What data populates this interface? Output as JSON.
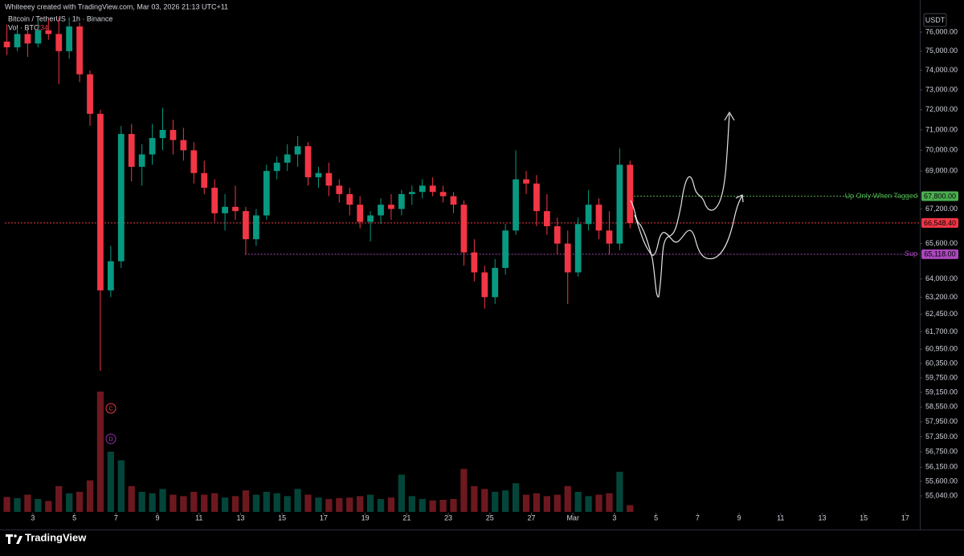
{
  "header": {
    "credit": "Whiteeey created with TradingView.com, Mar 03, 2026 21:13 UTC+11"
  },
  "footer": {
    "logo": "TradingView"
  },
  "chart_data": {
    "type": "candlestick",
    "title": "Bitcoin / TetherUS · 1h · Binance",
    "currency": "USDT",
    "log_scale": true,
    "up_color": "#089981",
    "down_color": "#f23645",
    "x": [
      1.75,
      2.25,
      2.75,
      3.25,
      3.75,
      4.25,
      4.75,
      5.25,
      5.75,
      6.25,
      6.75,
      7.25,
      7.75,
      8.25,
      8.75,
      9.25,
      9.75,
      10.25,
      10.75,
      11.25,
      11.75,
      12.25,
      12.75,
      13.25,
      13.75,
      14.25,
      14.75,
      15.25,
      15.75,
      16.25,
      16.75,
      17.25,
      17.75,
      18.25,
      18.75,
      19.25,
      19.75,
      20.25,
      20.75,
      21.25,
      21.75,
      22.25,
      22.75,
      23.25,
      23.75,
      24.25,
      24.75,
      25.25,
      25.75,
      26.25,
      26.75,
      27.25,
      27.75,
      28.25,
      28.75,
      29.25,
      29.75,
      30.25,
      30.75,
      31.25,
      31.75
    ],
    "open": [
      75500,
      75200,
      75900,
      75400,
      76100,
      75900,
      75000,
      76300,
      73800,
      71800,
      63500,
      64800,
      70800,
      69200,
      69800,
      70600,
      71000,
      70500,
      70000,
      68900,
      68200,
      67000,
      67300,
      67100,
      65800,
      66900,
      69000,
      69400,
      69800,
      70200,
      68700,
      68900,
      68300,
      67900,
      67400,
      66600,
      66900,
      67400,
      67200,
      67900,
      68000,
      68300,
      68000,
      67800,
      67400,
      65200,
      64300,
      63200,
      64500,
      66200,
      68600,
      68400,
      67100,
      66400,
      65600,
      64300,
      66500,
      67400,
      66200,
      65600,
      69300
    ],
    "high": [
      76400,
      76200,
      76300,
      76600,
      76700,
      76800,
      76800,
      76500,
      74000,
      72000,
      65500,
      71200,
      71300,
      70300,
      71300,
      72100,
      71500,
      71100,
      70400,
      69500,
      68600,
      67900,
      68300,
      67300,
      67200,
      69300,
      69700,
      70300,
      70700,
      70400,
      69200,
      69400,
      68600,
      68200,
      67800,
      67100,
      67700,
      67900,
      68100,
      68300,
      68600,
      68700,
      68300,
      68000,
      67600,
      65800,
      64600,
      64900,
      66500,
      70000,
      69000,
      68800,
      67900,
      66800,
      66200,
      66800,
      68100,
      67700,
      67100,
      70100,
      69500
    ],
    "low": [
      74800,
      75000,
      74700,
      75200,
      75600,
      73300,
      74600,
      73400,
      71200,
      60040,
      63200,
      64500,
      68500,
      68300,
      69300,
      70000,
      69800,
      69500,
      68400,
      67900,
      66600,
      66200,
      66700,
      65100,
      65500,
      66700,
      68600,
      69000,
      69200,
      68300,
      68200,
      67800,
      67500,
      66900,
      66300,
      65700,
      66500,
      66700,
      66900,
      67400,
      67700,
      67800,
      67500,
      67000,
      64600,
      63900,
      62700,
      62900,
      64200,
      66000,
      67900,
      66400,
      66000,
      65100,
      62900,
      64100,
      66200,
      65800,
      65100,
      65300,
      66300
    ],
    "close": [
      75200,
      75900,
      75400,
      76100,
      75900,
      75000,
      76300,
      73800,
      71800,
      63500,
      64800,
      70800,
      69200,
      69800,
      70600,
      71000,
      70500,
      70000,
      68900,
      68200,
      67000,
      67300,
      67100,
      65800,
      66900,
      69000,
      69400,
      69800,
      70200,
      68700,
      68900,
      68300,
      67900,
      67400,
      66600,
      66900,
      67400,
      67200,
      67900,
      68000,
      68300,
      68000,
      67800,
      67400,
      65200,
      64300,
      63200,
      64500,
      66200,
      68600,
      68400,
      67100,
      66400,
      65600,
      64300,
      66500,
      67400,
      66200,
      65600,
      69300,
      66548.4
    ],
    "volume_label": "Vol · BTC",
    "volume": [
      520,
      480,
      600,
      450,
      380,
      900,
      650,
      700,
      1100,
      4200,
      2100,
      1800,
      900,
      700,
      650,
      800,
      600,
      550,
      700,
      600,
      650,
      500,
      550,
      750,
      600,
      700,
      650,
      550,
      800,
      600,
      500,
      450,
      480,
      500,
      550,
      600,
      450,
      500,
      1300,
      550,
      450,
      400,
      420,
      450,
      1500,
      900,
      800,
      700,
      750,
      1000,
      600,
      650,
      550,
      600,
      900,
      700,
      550,
      600,
      650,
      1400,
      234
    ],
    "xlim": [
      1.65,
      45.7
    ],
    "xticks": [
      3,
      5,
      7,
      9,
      11,
      13,
      15,
      17,
      19,
      21,
      23,
      25,
      27,
      {
        "value": 29,
        "label": "Mar"
      },
      {
        "value": 31,
        "label": "3"
      },
      {
        "value": 33,
        "label": "5"
      },
      {
        "value": 35,
        "label": "7"
      },
      {
        "value": 37,
        "label": "9"
      },
      {
        "value": 39,
        "label": "11"
      },
      {
        "value": 41,
        "label": "13"
      },
      {
        "value": 43,
        "label": "15"
      },
      {
        "value": 45,
        "label": "17"
      }
    ],
    "ylim": [
      54430,
      76940
    ],
    "yticks": [
      {
        "value": 76000,
        "label": "76,000.00"
      },
      {
        "value": 75000,
        "label": "75,000.00"
      },
      {
        "value": 74000,
        "label": "74,000.00"
      },
      {
        "value": 73000,
        "label": "73,000.00"
      },
      {
        "value": 72000,
        "label": "72,000.00"
      },
      {
        "value": 71000,
        "label": "71,000.00"
      },
      {
        "value": 70000,
        "label": "70,000.00"
      },
      {
        "value": 69000,
        "label": "69,000.00"
      },
      {
        "value": 67200,
        "label": "67,200.00"
      },
      {
        "value": 65600,
        "label": "65,600.00"
      },
      {
        "value": 64000,
        "label": "64,000.00"
      },
      {
        "value": 63200,
        "label": "63,200.00"
      },
      {
        "value": 62450,
        "label": "62,450.00"
      },
      {
        "value": 61700,
        "label": "61,700.00"
      },
      {
        "value": 60950,
        "label": "60,950.00"
      },
      {
        "value": 60350,
        "label": "60,350.00"
      },
      {
        "value": 59750,
        "label": "59,750.00"
      },
      {
        "value": 59150,
        "label": "59,150.00"
      },
      {
        "value": 58550,
        "label": "58,550.00"
      },
      {
        "value": 57950,
        "label": "57,950.00"
      },
      {
        "value": 57350,
        "label": "57,350.00"
      },
      {
        "value": 56750,
        "label": "56,750.00"
      },
      {
        "value": 56150,
        "label": "56,150.00"
      },
      {
        "value": 55600,
        "label": "55,600.00"
      },
      {
        "value": 55040,
        "label": "55,040.00"
      }
    ],
    "price_lines": [
      {
        "name": "Up Only When Tagged",
        "value": 67800,
        "value_label": "67,800.00",
        "color": "#4caf50",
        "x_start": 31.78
      },
      {
        "value": 66548.4,
        "value_label": "66,548.40",
        "color": "#f23645"
      },
      {
        "name": "Sup",
        "value": 65118,
        "value_label": "65,118.00",
        "color": "#ab47bc",
        "x_start": 13.2
      }
    ],
    "markers": [
      {
        "label": "C",
        "color": "#f23645"
      },
      {
        "label": "D",
        "color": "#9c27b0"
      }
    ]
  }
}
